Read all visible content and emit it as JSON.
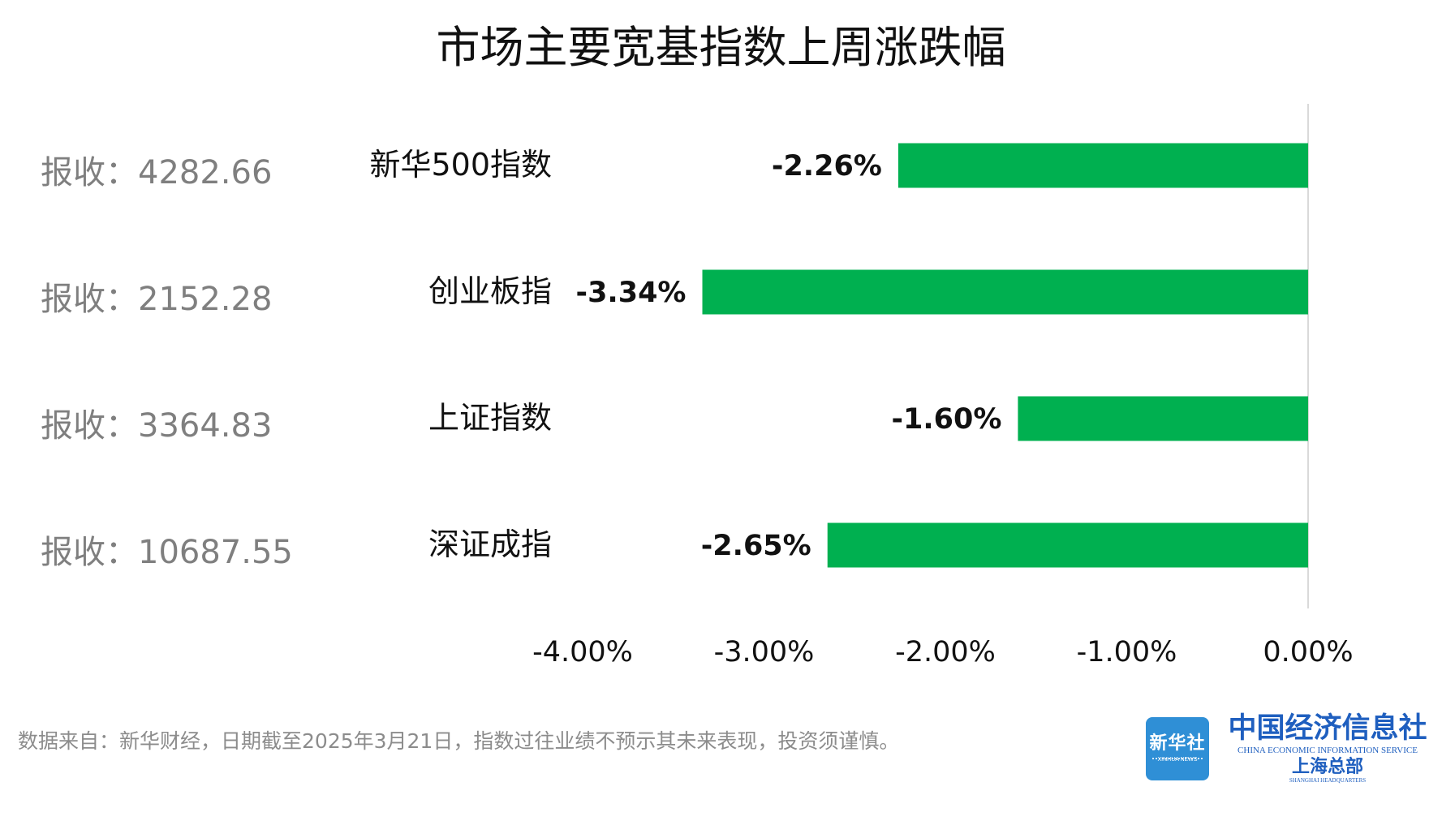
{
  "title": "市场主要宽基指数上周涨跌幅",
  "chart_data": {
    "type": "bar",
    "orientation": "horizontal",
    "categories": [
      "新华500指数",
      "创业板指",
      "上证指数",
      "深证成指"
    ],
    "values": [
      -2.26,
      -3.34,
      -1.6,
      -2.65
    ],
    "value_labels": [
      "-2.26%",
      "-3.34%",
      "-1.60%",
      "-2.65%"
    ],
    "close_labels": [
      "报收：4282.66",
      "报收：2152.28",
      "报收：3364.83",
      "报收：10687.55"
    ],
    "x_ticks": [
      -4,
      -3,
      -2,
      -1,
      0
    ],
    "x_tick_labels": [
      "-4.00%",
      "-3.00%",
      "-2.00%",
      "-1.00%",
      "0.00%"
    ],
    "xlim": [
      -4,
      0
    ],
    "grid": false,
    "bar_color": "#00b050",
    "title": "市场主要宽基指数上周涨跌幅",
    "xlabel": "",
    "ylabel": ""
  },
  "footer": {
    "source_note": "数据来自：新华财经，日期截至2025年3月21日，指数过往业绩不预示其未来表现，投资须谨慎。"
  },
  "logo": {
    "badge_cn": "新华社",
    "badge_en": "XINHUA NEWS",
    "org_cn": "中国经济信息社",
    "org_en": "CHINA ECONOMIC INFORMATION SERVICE",
    "dept_cn": "上海总部",
    "dept_en": "SHANGHAI HEADQUARTERS"
  }
}
